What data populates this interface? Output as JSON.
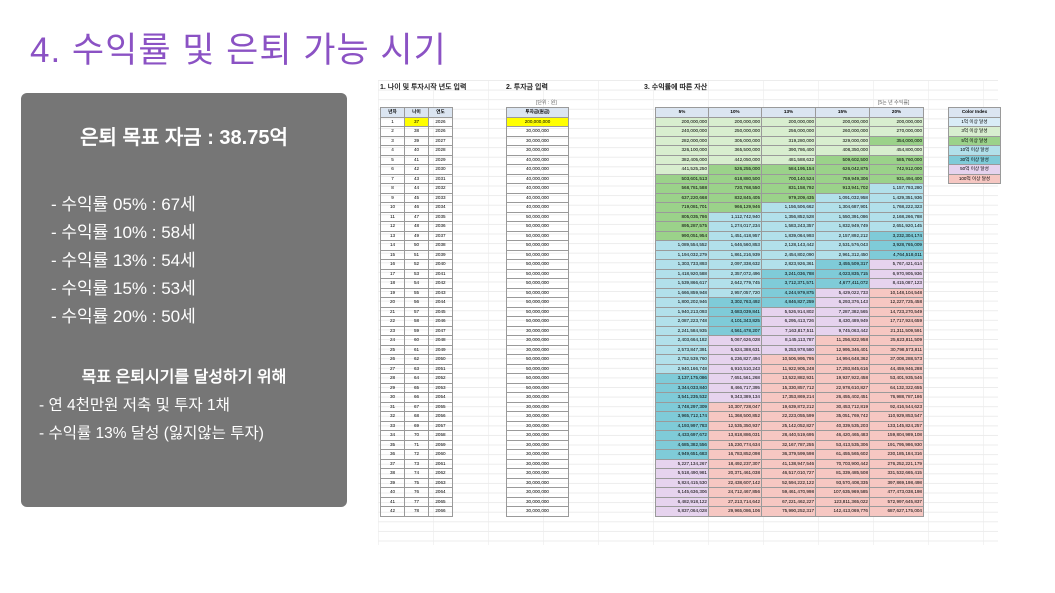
{
  "title": "4. 수익률 및 은퇴 가능 시기",
  "panel": {
    "heading": "은퇴 목표 자금 : 38.75억",
    "rates": [
      "- 수익률 05% : 67세",
      "- 수익률 10% : 58세",
      "- 수익률 13% : 54세",
      "- 수익률 15% : 53세",
      "- 수익률 20% : 50세"
    ],
    "sub_heading": "목표 은퇴시기를 달성하기 위해",
    "plan": [
      "- 연 4천만원 저축 및 투자 1채",
      "- 수익률 13% 달성 (잃지않는 투자)"
    ]
  },
  "sheet": {
    "section1_title": "1. 나이 및 투자시작 년도 입력",
    "section2_title": "2. 투자금 입력",
    "section3_title": "3. 수익률에 따른 자산",
    "unit_won": "[단위 : 원]",
    "unit_target": "[5는 년 수익률]",
    "age_headers": [
      "년차",
      "나이",
      "연도"
    ],
    "invest_header": "투자금(원금)",
    "rate_headers": [
      "5%",
      "10%",
      "13%",
      "15%",
      "20%"
    ],
    "legend_title": "Color Index",
    "legend": [
      "1억 이상 달성",
      "3억 이상 달성",
      "5억 이상 달성",
      "10억 이상 달성",
      "30억 이상 달성",
      "50억 이상 달성",
      "100억 이상 달성"
    ],
    "legend_colors": [
      "#d9ecf7",
      "#d8eecf",
      "#9bd28a",
      "#b2e0ea",
      "#7fcbd8",
      "#e6d3ee",
      "#f6c7c2"
    ],
    "highlight_color": "#ffff00",
    "rows": [
      {
        "n": "1",
        "age": "37",
        "year": "2026",
        "inv": "200,000,000",
        "v": [
          "200,000,000",
          "200,000,000",
          "200,000,000",
          "200,000,000",
          "200,000,000"
        ],
        "c": [
          2,
          2,
          2,
          2,
          2
        ]
      },
      {
        "n": "2",
        "age": "38",
        "year": "2026",
        "inv": "30,000,000",
        "v": [
          "240,000,000",
          "250,000,000",
          "256,000,000",
          "260,000,000",
          "270,000,000"
        ],
        "c": [
          2,
          2,
          2,
          2,
          2
        ]
      },
      {
        "n": "3",
        "age": "39",
        "year": "2027",
        "inv": "30,000,000",
        "v": [
          "282,000,000",
          "305,000,000",
          "319,280,000",
          "329,000,000",
          "354,000,000"
        ],
        "c": [
          2,
          2,
          2,
          2,
          3
        ]
      },
      {
        "n": "4",
        "age": "40",
        "year": "2028",
        "inv": "30,000,000",
        "v": [
          "326,100,000",
          "365,500,000",
          "390,786,400",
          "408,350,000",
          "454,800,000"
        ],
        "c": [
          2,
          2,
          2,
          2,
          2
        ]
      },
      {
        "n": "5",
        "age": "41",
        "year": "2029",
        "inv": "40,000,000",
        "v": [
          "382,405,000",
          "442,050,000",
          "481,588,632",
          "509,602,500",
          "585,760,000"
        ],
        "c": [
          2,
          2,
          2,
          3,
          3
        ]
      },
      {
        "n": "6",
        "age": "42",
        "year": "2030",
        "inv": "40,000,000",
        "v": [
          "441,525,250",
          "526,255,000",
          "584,195,154",
          "626,042,875",
          "742,912,000"
        ],
        "c": [
          2,
          3,
          3,
          3,
          3
        ]
      },
      {
        "n": "7",
        "age": "43",
        "year": "2031",
        "inv": "40,000,000",
        "v": [
          "503,601,513",
          "618,880,500",
          "700,140,524",
          "759,949,306",
          "931,494,400"
        ],
        "c": [
          3,
          3,
          3,
          3,
          3
        ]
      },
      {
        "n": "8",
        "age": "44",
        "year": "2032",
        "inv": "40,000,000",
        "v": [
          "568,781,588",
          "720,768,550",
          "831,158,792",
          "913,941,702",
          "1,157,793,280"
        ],
        "c": [
          3,
          3,
          3,
          3,
          4
        ]
      },
      {
        "n": "9",
        "age": "45",
        "year": "2033",
        "inv": "40,000,000",
        "v": [
          "637,220,668",
          "832,845,405",
          "979,209,435",
          "1,091,032,958",
          "1,429,351,936"
        ],
        "c": [
          3,
          3,
          3,
          4,
          4
        ]
      },
      {
        "n": "10",
        "age": "46",
        "year": "2034",
        "inv": "40,000,000",
        "v": [
          "719,081,701",
          "966,129,946",
          "1,156,506,662",
          "1,304,687,901",
          "1,768,222,323"
        ],
        "c": [
          3,
          3,
          4,
          4,
          4
        ]
      },
      {
        "n": "11",
        "age": "47",
        "year": "2035",
        "inv": "50,000,000",
        "v": [
          "805,035,786",
          "1,112,742,940",
          "1,356,852,528",
          "1,550,391,086",
          "2,168,266,788"
        ],
        "c": [
          3,
          4,
          4,
          4,
          4
        ]
      },
      {
        "n": "12",
        "age": "48",
        "year": "2036",
        "inv": "50,000,000",
        "v": [
          "895,287,575",
          "1,274,017,234",
          "1,583,243,357",
          "1,832,949,749",
          "2,651,920,145"
        ],
        "c": [
          3,
          4,
          4,
          4,
          4
        ]
      },
      {
        "n": "13",
        "age": "49",
        "year": "2037",
        "inv": "50,000,000",
        "v": [
          "990,051,954",
          "1,451,418,957",
          "1,839,064,993",
          "2,157,892,212",
          "3,232,304,174"
        ],
        "c": [
          3,
          4,
          4,
          4,
          5
        ]
      },
      {
        "n": "14",
        "age": "50",
        "year": "2038",
        "inv": "50,000,000",
        "v": [
          "1,089,554,552",
          "1,646,560,853",
          "2,128,143,442",
          "2,531,576,043",
          "3,928,765,009"
        ],
        "c": [
          4,
          4,
          4,
          4,
          5
        ]
      },
      {
        "n": "15",
        "age": "51",
        "year": "2039",
        "inv": "50,000,000",
        "v": [
          "1,194,032,279",
          "1,861,216,939",
          "2,454,802,090",
          "2,961,312,450",
          "4,764,518,011"
        ],
        "c": [
          4,
          4,
          4,
          4,
          5
        ]
      },
      {
        "n": "16",
        "age": "52",
        "year": "2040",
        "inv": "50,000,000",
        "v": [
          "1,303,733,893",
          "2,097,338,632",
          "2,823,926,361",
          "3,455,509,317",
          "5,767,421,614"
        ],
        "c": [
          4,
          4,
          4,
          5,
          6
        ]
      },
      {
        "n": "17",
        "age": "53",
        "year": "2041",
        "inv": "50,000,000",
        "v": [
          "1,418,920,588",
          "2,357,072,496",
          "3,241,036,788",
          "4,023,835,715",
          "6,970,905,936"
        ],
        "c": [
          4,
          4,
          5,
          5,
          6
        ]
      },
      {
        "n": "18",
        "age": "54",
        "year": "2042",
        "inv": "50,000,000",
        "v": [
          "1,539,866,617",
          "2,642,779,745",
          "3,712,371,571",
          "4,677,411,072",
          "8,415,087,123"
        ],
        "c": [
          4,
          4,
          5,
          5,
          6
        ]
      },
      {
        "n": "19",
        "age": "55",
        "year": "2043",
        "inv": "50,000,000",
        "v": [
          "1,666,859,948",
          "2,957,057,720",
          "4,244,979,875",
          "5,429,022,733",
          "10,148,104,548"
        ],
        "c": [
          4,
          4,
          5,
          6,
          7
        ]
      },
      {
        "n": "20",
        "age": "56",
        "year": "2044",
        "inv": "50,000,000",
        "v": [
          "1,800,202,946",
          "3,302,763,492",
          "4,846,827,259",
          "6,293,376,143",
          "12,227,725,458"
        ],
        "c": [
          4,
          5,
          5,
          6,
          7
        ]
      },
      {
        "n": "21",
        "age": "57",
        "year": "2045",
        "inv": "50,000,000",
        "v": [
          "1,940,213,093",
          "3,683,039,841",
          "5,526,914,802",
          "7,287,382,565",
          "14,723,270,549"
        ],
        "c": [
          4,
          5,
          6,
          6,
          7
        ]
      },
      {
        "n": "22",
        "age": "58",
        "year": "2046",
        "inv": "50,000,000",
        "v": [
          "2,087,223,748",
          "4,101,343,825",
          "6,295,413,726",
          "8,430,489,949",
          "17,717,924,659"
        ],
        "c": [
          4,
          5,
          6,
          6,
          7
        ]
      },
      {
        "n": "23",
        "age": "59",
        "year": "2047",
        "inv": "30,000,000",
        "v": [
          "2,241,584,935",
          "4,561,478,207",
          "7,163,817,511",
          "9,745,063,442",
          "21,311,509,591"
        ],
        "c": [
          4,
          5,
          6,
          6,
          7
        ]
      },
      {
        "n": "24",
        "age": "60",
        "year": "2048",
        "inv": "30,000,000",
        "v": [
          "2,403,664,182",
          "5,067,626,028",
          "8,145,113,787",
          "11,256,822,958",
          "25,623,811,509"
        ],
        "c": [
          4,
          6,
          6,
          7,
          7
        ]
      },
      {
        "n": "25",
        "age": "61",
        "year": "2049",
        "inv": "30,000,000",
        "v": [
          "2,573,847,391",
          "5,624,388,631",
          "9,253,978,580",
          "12,995,346,401",
          "30,798,573,811"
        ],
        "c": [
          4,
          6,
          6,
          7,
          7
        ]
      },
      {
        "n": "26",
        "age": "62",
        "year": "2050",
        "inv": "50,000,000",
        "v": [
          "2,752,539,760",
          "6,236,827,494",
          "10,506,995,795",
          "14,994,648,362",
          "37,008,288,573"
        ],
        "c": [
          4,
          6,
          7,
          7,
          7
        ]
      },
      {
        "n": "27",
        "age": "63",
        "year": "2051",
        "inv": "50,000,000",
        "v": [
          "2,940,166,748",
          "6,910,510,243",
          "11,922,905,248",
          "17,293,845,616",
          "44,459,946,288"
        ],
        "c": [
          4,
          6,
          7,
          7,
          7
        ]
      },
      {
        "n": "28",
        "age": "64",
        "year": "2052",
        "inv": "50,000,000",
        "v": [
          "3,137,175,086",
          "7,651,561,268",
          "13,522,882,931",
          "19,937,922,458",
          "53,401,935,546"
        ],
        "c": [
          5,
          6,
          7,
          7,
          7
        ]
      },
      {
        "n": "29",
        "age": "65",
        "year": "2053",
        "inv": "50,000,000",
        "v": [
          "3,344,033,840",
          "8,466,717,395",
          "15,330,857,712",
          "22,978,610,827",
          "64,132,322,655"
        ],
        "c": [
          5,
          6,
          7,
          7,
          7
        ]
      },
      {
        "n": "30",
        "age": "66",
        "year": "2054",
        "inv": "30,000,000",
        "v": [
          "3,541,235,532",
          "9,343,389,134",
          "17,353,869,214",
          "26,455,402,451",
          "76,988,787,186"
        ],
        "c": [
          5,
          6,
          7,
          7,
          7
        ]
      },
      {
        "n": "31",
        "age": "67",
        "year": "2055",
        "inv": "30,000,000",
        "v": [
          "3,748,297,309",
          "10,307,728,047",
          "19,639,872,212",
          "30,453,712,819",
          "92,416,544,623"
        ],
        "c": [
          5,
          7,
          7,
          7,
          7
        ]
      },
      {
        "n": "32",
        "age": "68",
        "year": "2056",
        "inv": "30,000,000",
        "v": [
          "3,965,712,174",
          "11,368,500,852",
          "22,223,055,599",
          "35,051,769,742",
          "110,929,853,547"
        ],
        "c": [
          5,
          7,
          7,
          7,
          7
        ]
      },
      {
        "n": "33",
        "age": "69",
        "year": "2057",
        "inv": "30,000,000",
        "v": [
          "4,193,997,783",
          "12,535,350,937",
          "25,142,052,827",
          "40,339,535,203",
          "133,145,824,257"
        ],
        "c": [
          5,
          7,
          7,
          7,
          7
        ]
      },
      {
        "n": "34",
        "age": "70",
        "year": "2058",
        "inv": "30,000,000",
        "v": [
          "4,433,697,672",
          "13,818,886,031",
          "28,440,519,695",
          "46,420,465,483",
          "159,804,989,108"
        ],
        "c": [
          5,
          7,
          7,
          7,
          7
        ]
      },
      {
        "n": "35",
        "age": "71",
        "year": "2059",
        "inv": "30,000,000",
        "v": [
          "4,685,382,556",
          "15,230,774,634",
          "32,167,787,255",
          "53,413,535,306",
          "191,795,986,930"
        ],
        "c": [
          5,
          7,
          7,
          7,
          7
        ]
      },
      {
        "n": "36",
        "age": "72",
        "year": "2060",
        "inv": "30,000,000",
        "v": [
          "4,949,651,683",
          "16,783,852,098",
          "36,379,599,598",
          "61,455,565,602",
          "230,185,184,316"
        ],
        "c": [
          5,
          7,
          7,
          7,
          7
        ]
      },
      {
        "n": "37",
        "age": "73",
        "year": "2061",
        "inv": "30,000,000",
        "v": [
          "5,227,134,267",
          "18,492,237,307",
          "41,138,947,546",
          "70,703,900,442",
          "276,252,221,179"
        ],
        "c": [
          6,
          7,
          7,
          7,
          7
        ]
      },
      {
        "n": "38",
        "age": "74",
        "year": "2062",
        "inv": "30,000,000",
        "v": [
          "5,518,490,981",
          "20,371,461,038",
          "46,517,010,727",
          "81,339,485,508",
          "331,532,665,415"
        ],
        "c": [
          6,
          7,
          7,
          7,
          7
        ]
      },
      {
        "n": "39",
        "age": "75",
        "year": "2063",
        "inv": "30,000,000",
        "v": [
          "5,824,415,530",
          "22,438,607,142",
          "52,594,222,122",
          "93,570,408,335",
          "397,869,198,498"
        ],
        "c": [
          6,
          7,
          7,
          7,
          7
        ]
      },
      {
        "n": "40",
        "age": "76",
        "year": "2064",
        "inv": "30,000,000",
        "v": [
          "6,145,636,306",
          "24,712,467,856",
          "59,461,470,998",
          "107,635,969,585",
          "477,473,038,198"
        ],
        "c": [
          6,
          7,
          7,
          7,
          7
        ]
      },
      {
        "n": "41",
        "age": "77",
        "year": "2065",
        "inv": "30,000,000",
        "v": [
          "6,482,918,122",
          "27,213,714,642",
          "67,221,462,227",
          "123,811,365,022",
          "572,997,645,837"
        ],
        "c": [
          6,
          7,
          7,
          7,
          7
        ]
      },
      {
        "n": "42",
        "age": "78",
        "year": "2066",
        "inv": "30,000,000",
        "v": [
          "6,837,064,028",
          "29,965,086,106",
          "75,990,252,317",
          "142,413,069,776",
          "687,627,175,004"
        ],
        "c": [
          6,
          7,
          7,
          7,
          7
        ]
      }
    ]
  }
}
